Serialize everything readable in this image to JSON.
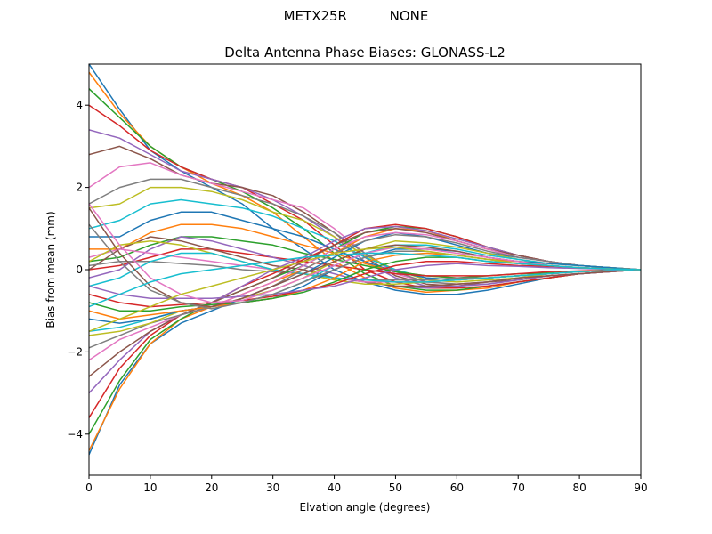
{
  "figure": {
    "suptitle": "METX25R          NONE"
  },
  "chart_data": {
    "type": "line",
    "title": "Delta Antenna Phase Biases: GLONASS-L2",
    "xlabel": "Elvation angle (degrees)",
    "ylabel": "Bias from mean (mm)",
    "xlim": [
      0,
      90
    ],
    "ylim": [
      -5,
      5
    ],
    "x_ticks": [
      "0",
      "10",
      "20",
      "30",
      "40",
      "50",
      "60",
      "70",
      "80",
      "90"
    ],
    "y_ticks": [
      "−4",
      "−2",
      "0",
      "2",
      "4"
    ],
    "grid": false,
    "legend": "none",
    "x": [
      0,
      5,
      10,
      15,
      20,
      25,
      30,
      35,
      40,
      45,
      50,
      55,
      60,
      65,
      70,
      75,
      80,
      85,
      90
    ],
    "colors": [
      "#1f77b4",
      "#ff7f0e",
      "#2ca02c",
      "#d62728",
      "#9467bd",
      "#8c564b",
      "#e377c2",
      "#7f7f7f",
      "#bcbd22",
      "#17becf"
    ],
    "series": [
      {
        "values": [
          5.0,
          3.9,
          2.9,
          2.4,
          2.0,
          1.6,
          1.0,
          0.5,
          0.0,
          -0.3,
          -0.5,
          -0.6,
          -0.6,
          -0.5,
          -0.35,
          -0.2,
          -0.1,
          -0.05,
          0
        ]
      },
      {
        "values": [
          4.8,
          3.8,
          3.0,
          2.5,
          2.1,
          1.8,
          1.4,
          0.8,
          0.2,
          -0.2,
          -0.45,
          -0.55,
          -0.5,
          -0.45,
          -0.3,
          -0.2,
          -0.1,
          -0.05,
          0
        ]
      },
      {
        "values": [
          4.4,
          3.7,
          3.0,
          2.5,
          2.2,
          1.9,
          1.5,
          1.0,
          0.4,
          -0.1,
          -0.4,
          -0.5,
          -0.5,
          -0.4,
          -0.3,
          -0.2,
          -0.1,
          -0.05,
          0
        ]
      },
      {
        "values": [
          4.0,
          3.5,
          2.9,
          2.5,
          2.2,
          2.0,
          1.6,
          1.2,
          0.6,
          0.0,
          -0.3,
          -0.45,
          -0.45,
          -0.4,
          -0.3,
          -0.2,
          -0.1,
          -0.05,
          0
        ]
      },
      {
        "values": [
          3.4,
          3.2,
          2.8,
          2.4,
          2.2,
          2.0,
          1.7,
          1.3,
          0.8,
          0.2,
          -0.2,
          -0.4,
          -0.4,
          -0.35,
          -0.25,
          -0.15,
          -0.1,
          -0.05,
          0
        ]
      },
      {
        "values": [
          2.8,
          3.0,
          2.7,
          2.3,
          2.1,
          2.0,
          1.8,
          1.4,
          0.9,
          0.3,
          -0.15,
          -0.35,
          -0.4,
          -0.3,
          -0.25,
          -0.15,
          -0.1,
          -0.05,
          0
        ]
      },
      {
        "values": [
          2.0,
          2.5,
          2.6,
          2.3,
          2.1,
          1.9,
          1.7,
          1.5,
          1.0,
          0.4,
          -0.1,
          -0.3,
          -0.35,
          -0.3,
          -0.2,
          -0.15,
          -0.1,
          -0.05,
          0
        ]
      },
      {
        "values": [
          1.6,
          2.0,
          2.2,
          2.2,
          2.0,
          1.8,
          1.6,
          1.3,
          0.9,
          0.4,
          -0.05,
          -0.3,
          -0.35,
          -0.3,
          -0.2,
          -0.15,
          -0.1,
          -0.05,
          0
        ]
      },
      {
        "values": [
          1.5,
          1.6,
          2.0,
          2.0,
          1.9,
          1.7,
          1.4,
          1.2,
          0.8,
          0.35,
          0.0,
          -0.25,
          -0.3,
          -0.25,
          -0.2,
          -0.1,
          -0.05,
          -0.02,
          0
        ]
      },
      {
        "values": [
          1.0,
          1.2,
          1.6,
          1.7,
          1.6,
          1.5,
          1.3,
          1.0,
          0.7,
          0.3,
          0.0,
          -0.2,
          -0.25,
          -0.2,
          -0.15,
          -0.1,
          -0.05,
          -0.02,
          0
        ]
      },
      {
        "values": [
          0.8,
          0.8,
          1.2,
          1.4,
          1.4,
          1.2,
          1.0,
          0.8,
          0.5,
          0.2,
          -0.05,
          -0.2,
          -0.25,
          -0.2,
          -0.15,
          -0.1,
          -0.05,
          -0.02,
          0
        ]
      },
      {
        "values": [
          0.5,
          0.5,
          0.9,
          1.1,
          1.1,
          1.0,
          0.8,
          0.6,
          0.4,
          0.15,
          -0.05,
          -0.15,
          -0.2,
          -0.2,
          -0.15,
          -0.1,
          -0.05,
          -0.02,
          0
        ]
      },
      {
        "values": [
          0.2,
          0.3,
          0.6,
          0.8,
          0.8,
          0.7,
          0.6,
          0.4,
          0.25,
          0.1,
          -0.05,
          -0.15,
          -0.2,
          -0.15,
          -0.1,
          -0.08,
          -0.05,
          -0.02,
          0
        ]
      },
      {
        "values": [
          0.0,
          0.1,
          0.3,
          0.5,
          0.5,
          0.4,
          0.3,
          0.2,
          0.1,
          0.0,
          -0.1,
          -0.15,
          -0.15,
          -0.15,
          -0.1,
          -0.05,
          -0.03,
          -0.01,
          0
        ]
      },
      {
        "values": [
          -0.2,
          0.0,
          0.5,
          0.8,
          0.7,
          0.5,
          0.3,
          0.1,
          -0.1,
          -0.3,
          -0.4,
          -0.45,
          -0.4,
          -0.35,
          -0.25,
          -0.15,
          -0.1,
          -0.05,
          0
        ]
      },
      {
        "values": [
          0.0,
          0.5,
          0.8,
          0.7,
          0.5,
          0.3,
          0.1,
          0.0,
          -0.2,
          -0.3,
          -0.4,
          -0.4,
          -0.35,
          -0.3,
          -0.2,
          -0.15,
          -0.1,
          -0.05,
          0
        ]
      },
      {
        "values": [
          0.3,
          0.5,
          0.4,
          0.3,
          0.2,
          0.1,
          0.0,
          -0.1,
          -0.2,
          -0.3,
          -0.3,
          -0.3,
          -0.25,
          -0.2,
          -0.15,
          -0.1,
          -0.05,
          -0.02,
          0
        ]
      },
      {
        "values": [
          0.1,
          0.2,
          0.2,
          0.15,
          0.1,
          0.0,
          -0.05,
          -0.1,
          -0.2,
          -0.25,
          -0.25,
          -0.25,
          -0.2,
          -0.2,
          -0.15,
          -0.1,
          -0.05,
          -0.02,
          0
        ]
      },
      {
        "values": [
          0.2,
          0.6,
          0.7,
          0.6,
          0.4,
          0.2,
          0.0,
          -0.1,
          -0.25,
          -0.35,
          -0.35,
          -0.3,
          -0.25,
          -0.2,
          -0.15,
          -0.1,
          -0.05,
          -0.02,
          0
        ]
      },
      {
        "values": [
          -0.4,
          -0.2,
          0.2,
          0.4,
          0.4,
          0.2,
          0.0,
          -0.1,
          -0.2,
          -0.25,
          -0.3,
          -0.3,
          -0.25,
          -0.2,
          -0.15,
          -0.1,
          -0.05,
          -0.02,
          0
        ]
      },
      {
        "values": [
          -4.5,
          -2.8,
          -1.8,
          -1.3,
          -1.0,
          -0.7,
          -0.4,
          -0.1,
          0.3,
          0.7,
          0.9,
          0.8,
          0.6,
          0.4,
          0.3,
          0.2,
          0.1,
          0.05,
          0
        ]
      },
      {
        "values": [
          -4.4,
          -2.9,
          -1.8,
          -1.2,
          -0.9,
          -0.6,
          -0.3,
          0.0,
          0.4,
          0.8,
          1.0,
          0.95,
          0.7,
          0.5,
          0.35,
          0.2,
          0.1,
          0.05,
          0
        ]
      },
      {
        "values": [
          -4.0,
          -2.7,
          -1.7,
          -1.2,
          -0.8,
          -0.5,
          -0.2,
          0.1,
          0.5,
          0.9,
          1.05,
          1.0,
          0.8,
          0.55,
          0.35,
          0.2,
          0.1,
          0.05,
          0
        ]
      },
      {
        "values": [
          -3.6,
          -2.4,
          -1.6,
          -1.1,
          -0.8,
          -0.4,
          -0.1,
          0.25,
          0.6,
          1.0,
          1.1,
          1.0,
          0.8,
          0.55,
          0.35,
          0.2,
          0.1,
          0.05,
          0
        ]
      },
      {
        "values": [
          -3.0,
          -2.2,
          -1.5,
          -1.1,
          -0.8,
          -0.4,
          0.0,
          0.3,
          0.7,
          1.0,
          1.05,
          0.95,
          0.75,
          0.55,
          0.35,
          0.2,
          0.1,
          0.05,
          0
        ]
      },
      {
        "values": [
          -2.6,
          -2.0,
          -1.5,
          -1.1,
          -0.8,
          -0.5,
          -0.2,
          0.2,
          0.6,
          0.9,
          1.0,
          0.9,
          0.7,
          0.5,
          0.35,
          0.2,
          0.1,
          0.05,
          0
        ]
      },
      {
        "values": [
          -2.2,
          -1.7,
          -1.4,
          -1.1,
          -0.9,
          -0.6,
          -0.3,
          0.1,
          0.5,
          0.8,
          0.9,
          0.85,
          0.7,
          0.5,
          0.3,
          0.2,
          0.1,
          0.05,
          0
        ]
      },
      {
        "values": [
          -1.9,
          -1.6,
          -1.3,
          -1.1,
          -0.9,
          -0.7,
          -0.4,
          0.0,
          0.4,
          0.7,
          0.85,
          0.8,
          0.65,
          0.45,
          0.3,
          0.2,
          0.1,
          0.05,
          0
        ]
      },
      {
        "values": [
          -1.6,
          -1.5,
          -1.3,
          -1.0,
          -0.9,
          -0.7,
          -0.5,
          -0.2,
          0.2,
          0.5,
          0.7,
          0.65,
          0.55,
          0.4,
          0.25,
          0.15,
          0.1,
          0.05,
          0
        ]
      },
      {
        "values": [
          -1.5,
          -1.4,
          -1.2,
          -1.0,
          -0.9,
          -0.8,
          -0.6,
          -0.3,
          0.1,
          0.4,
          0.6,
          0.6,
          0.5,
          0.35,
          0.25,
          0.15,
          0.1,
          0.05,
          0
        ]
      },
      {
        "values": [
          -1.2,
          -1.3,
          -1.2,
          -1.0,
          -0.9,
          -0.8,
          -0.7,
          -0.4,
          0.0,
          0.3,
          0.5,
          0.5,
          0.45,
          0.3,
          0.2,
          0.15,
          0.1,
          0.05,
          0
        ]
      },
      {
        "values": [
          -1.0,
          -1.2,
          -1.1,
          -1.0,
          -0.9,
          -0.8,
          -0.7,
          -0.5,
          -0.2,
          0.2,
          0.35,
          0.4,
          0.35,
          0.25,
          0.2,
          0.1,
          0.05,
          0.02,
          0
        ]
      },
      {
        "values": [
          -0.8,
          -1.0,
          -1.0,
          -0.9,
          -0.85,
          -0.8,
          -0.7,
          -0.55,
          -0.3,
          0.0,
          0.2,
          0.3,
          0.3,
          0.2,
          0.15,
          0.1,
          0.05,
          0.02,
          0
        ]
      },
      {
        "values": [
          -0.6,
          -0.8,
          -0.9,
          -0.85,
          -0.8,
          -0.75,
          -0.65,
          -0.5,
          -0.35,
          -0.1,
          0.1,
          0.2,
          0.2,
          0.15,
          0.1,
          0.08,
          0.05,
          0.02,
          0
        ]
      },
      {
        "values": [
          -0.4,
          -0.6,
          -0.7,
          -0.7,
          -0.7,
          -0.65,
          -0.6,
          -0.5,
          -0.4,
          -0.2,
          0.0,
          0.1,
          0.15,
          0.1,
          0.08,
          0.05,
          0.03,
          0.01,
          0
        ]
      },
      {
        "values": [
          1.5,
          0.4,
          -0.4,
          -0.8,
          -0.9,
          -0.7,
          -0.4,
          -0.1,
          0.2,
          0.5,
          0.6,
          0.55,
          0.45,
          0.3,
          0.2,
          0.1,
          0.05,
          0.02,
          0
        ]
      },
      {
        "values": [
          1.6,
          0.6,
          -0.2,
          -0.6,
          -0.8,
          -0.75,
          -0.5,
          -0.2,
          0.1,
          0.4,
          0.55,
          0.5,
          0.4,
          0.3,
          0.2,
          0.1,
          0.05,
          0.02,
          0
        ]
      },
      {
        "values": [
          1.1,
          0.2,
          -0.5,
          -0.8,
          -0.95,
          -0.8,
          -0.6,
          -0.3,
          0.0,
          0.3,
          0.45,
          0.45,
          0.35,
          0.25,
          0.15,
          0.1,
          0.05,
          0.02,
          0
        ]
      },
      {
        "values": [
          -1.5,
          -1.2,
          -0.9,
          -0.6,
          -0.4,
          -0.2,
          0.0,
          0.2,
          0.4,
          0.5,
          0.55,
          0.45,
          0.35,
          0.25,
          0.15,
          0.1,
          0.05,
          0.02,
          0
        ]
      },
      {
        "values": [
          -0.9,
          -0.6,
          -0.3,
          -0.1,
          0.0,
          0.1,
          0.2,
          0.3,
          0.35,
          0.4,
          0.4,
          0.35,
          0.3,
          0.2,
          0.15,
          0.1,
          0.05,
          0.02,
          0
        ]
      }
    ]
  }
}
